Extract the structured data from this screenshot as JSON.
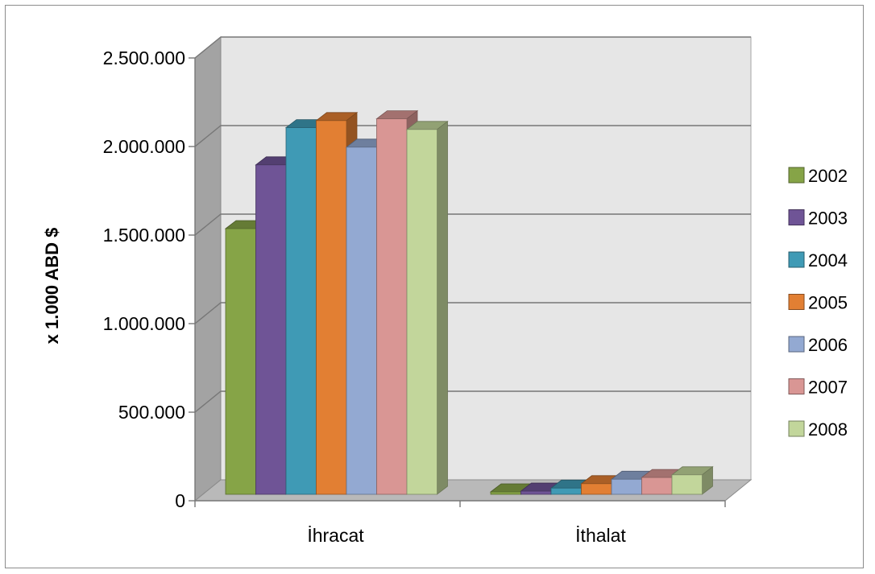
{
  "chart_data": {
    "type": "bar",
    "style": "3d-clustered-column",
    "categories": [
      "İhracat",
      "İthalat"
    ],
    "series": [
      {
        "name": "2002",
        "color": "#86a447",
        "values": [
          1500000,
          9000
        ]
      },
      {
        "name": "2003",
        "color": "#6f5496",
        "values": [
          1860000,
          18000
        ]
      },
      {
        "name": "2004",
        "color": "#3f9ab5",
        "values": [
          2070000,
          35000
        ]
      },
      {
        "name": "2005",
        "color": "#e27f33",
        "values": [
          2110000,
          60000
        ]
      },
      {
        "name": "2006",
        "color": "#93a9d2",
        "values": [
          1960000,
          85000
        ]
      },
      {
        "name": "2007",
        "color": "#d99694",
        "values": [
          2120000,
          95000
        ]
      },
      {
        "name": "2008",
        "color": "#c2d69b",
        "values": [
          2060000,
          110000
        ]
      }
    ],
    "ylabel": "x  1.000 ABD $",
    "xlabel": "",
    "ylim": [
      0,
      2500000
    ],
    "yticks": [
      "0",
      "500.000",
      "1.000.000",
      "1.500.000",
      "2.000.000",
      "2.500.000"
    ],
    "grid": true,
    "legend_position": "right"
  }
}
